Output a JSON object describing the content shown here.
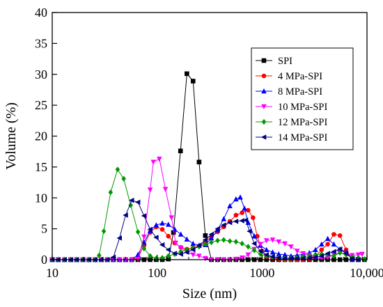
{
  "chart_data": {
    "type": "line",
    "xlabel": "Size (nm)",
    "ylabel": "Volume (%)",
    "xscale": "log",
    "xlim": [
      10,
      10000
    ],
    "ylim": [
      0,
      40
    ],
    "x_ticks": [
      {
        "value": 10,
        "label": "10"
      },
      {
        "value": 100,
        "label": "100"
      },
      {
        "value": 1000,
        "label": "1000"
      },
      {
        "value": 10000,
        "label": "10,000"
      }
    ],
    "y_ticks": [
      {
        "value": 0,
        "label": "0"
      },
      {
        "value": 5,
        "label": "5"
      },
      {
        "value": 10,
        "label": "10"
      },
      {
        "value": 15,
        "label": "15"
      },
      {
        "value": 20,
        "label": "20"
      },
      {
        "value": 25,
        "label": "25"
      },
      {
        "value": 30,
        "label": "30"
      },
      {
        "value": 35,
        "label": "35"
      },
      {
        "value": 40,
        "label": "40"
      }
    ],
    "grid": false,
    "legend_position": "top-right",
    "series": [
      {
        "name": "SPI",
        "color": "#000000",
        "marker": "square",
        "points": [
          [
            10,
            0
          ],
          [
            11.4,
            0
          ],
          [
            13.1,
            0
          ],
          [
            15,
            0
          ],
          [
            17.1,
            0
          ],
          [
            19.6,
            0
          ],
          [
            22.4,
            0
          ],
          [
            25.6,
            0
          ],
          [
            29.3,
            0
          ],
          [
            33.5,
            0
          ],
          [
            38.3,
            0
          ],
          [
            43.8,
            0
          ],
          [
            50.1,
            0
          ],
          [
            57.3,
            0
          ],
          [
            65.6,
            0
          ],
          [
            75,
            0
          ],
          [
            85.8,
            0
          ],
          [
            98,
            0
          ],
          [
            112,
            0
          ],
          [
            128,
            0.1
          ],
          [
            143,
            4.4
          ],
          [
            167,
            17.6
          ],
          [
            192,
            30.1
          ],
          [
            220,
            28.9
          ],
          [
            251,
            15.8
          ],
          [
            288,
            3.9
          ],
          [
            329,
            0
          ],
          [
            377,
            0
          ],
          [
            431,
            0
          ],
          [
            493,
            0
          ],
          [
            564,
            0
          ],
          [
            645,
            0
          ],
          [
            737,
            0
          ],
          [
            843,
            0
          ],
          [
            965,
            0
          ],
          [
            1103,
            0
          ],
          [
            1262,
            0
          ],
          [
            1443,
            0
          ],
          [
            1650,
            0
          ],
          [
            1888,
            0
          ],
          [
            2159,
            0
          ],
          [
            2469,
            0
          ],
          [
            2824,
            0
          ],
          [
            3230,
            0
          ],
          [
            3694,
            0
          ],
          [
            4225,
            0
          ],
          [
            4833,
            0
          ],
          [
            5527,
            0
          ],
          [
            6321,
            0
          ],
          [
            7230,
            0
          ],
          [
            8269,
            0
          ],
          [
            9457,
            0
          ]
        ]
      },
      {
        "name": "4 MPa-SPI",
        "color": "#ff0000",
        "marker": "circle",
        "points": [
          [
            10,
            0
          ],
          [
            11.4,
            0
          ],
          [
            13.1,
            0
          ],
          [
            15,
            0
          ],
          [
            17.1,
            0
          ],
          [
            19.6,
            0
          ],
          [
            22.4,
            0
          ],
          [
            25.6,
            0
          ],
          [
            29.3,
            0
          ],
          [
            33.5,
            0
          ],
          [
            38.3,
            0
          ],
          [
            43.8,
            0
          ],
          [
            50.1,
            0
          ],
          [
            57.3,
            0
          ],
          [
            65.6,
            0.3
          ],
          [
            75,
            2.3
          ],
          [
            85.8,
            4.4
          ],
          [
            98,
            5.3
          ],
          [
            112,
            4.9
          ],
          [
            128,
            3.8
          ],
          [
            147,
            2.7
          ],
          [
            168,
            2
          ],
          [
            192,
            1.7
          ],
          [
            220,
            1.9
          ],
          [
            251,
            2.2
          ],
          [
            288,
            2.9
          ],
          [
            329,
            3.7
          ],
          [
            377,
            4.5
          ],
          [
            431,
            5.3
          ],
          [
            493,
            6.2
          ],
          [
            564,
            7.2
          ],
          [
            645,
            7.6
          ],
          [
            737,
            8
          ],
          [
            820,
            6.8
          ],
          [
            900,
            3.8
          ],
          [
            1000,
            1.4
          ],
          [
            1103,
            0.5
          ],
          [
            1262,
            0.2
          ],
          [
            1443,
            0.1
          ],
          [
            1650,
            0
          ],
          [
            1888,
            0
          ],
          [
            2159,
            0
          ],
          [
            2469,
            0
          ],
          [
            2824,
            0.1
          ],
          [
            3230,
            0.5
          ],
          [
            3694,
            1.6
          ],
          [
            4225,
            2.5
          ],
          [
            4833,
            4.1
          ],
          [
            5527,
            3.9
          ],
          [
            6321,
            1.6
          ],
          [
            7230,
            0.1
          ],
          [
            8269,
            0
          ]
        ]
      },
      {
        "name": "8 MPa-SPI",
        "color": "#0000ff",
        "marker": "triangle-up",
        "points": [
          [
            10,
            0
          ],
          [
            11.4,
            0
          ],
          [
            13.1,
            0
          ],
          [
            15,
            0
          ],
          [
            17.1,
            0
          ],
          [
            19.6,
            0
          ],
          [
            22.4,
            0
          ],
          [
            25.6,
            0
          ],
          [
            29.3,
            0
          ],
          [
            33.5,
            0
          ],
          [
            38.3,
            0
          ],
          [
            43.8,
            0
          ],
          [
            50.1,
            0
          ],
          [
            57.3,
            0
          ],
          [
            65.6,
            0.8
          ],
          [
            75,
            2.8
          ],
          [
            85.8,
            4.7
          ],
          [
            98,
            5.6
          ],
          [
            112,
            5.9
          ],
          [
            128,
            5.7
          ],
          [
            147,
            4.9
          ],
          [
            168,
            4.1
          ],
          [
            192,
            3.3
          ],
          [
            220,
            2.6
          ],
          [
            251,
            2.3
          ],
          [
            288,
            2.4
          ],
          [
            329,
            3.5
          ],
          [
            377,
            4.8
          ],
          [
            431,
            6.6
          ],
          [
            493,
            8.7
          ],
          [
            564,
            9.8
          ],
          [
            620,
            10.1
          ],
          [
            680,
            8.3
          ],
          [
            737,
            6
          ],
          [
            843,
            3.8
          ],
          [
            965,
            2.3
          ],
          [
            1103,
            1.6
          ],
          [
            1262,
            1.2
          ],
          [
            1443,
            0.9
          ],
          [
            1650,
            0.8
          ],
          [
            1888,
            0.6
          ],
          [
            2159,
            0.7
          ],
          [
            2469,
            0.9
          ],
          [
            2824,
            1.1
          ],
          [
            3230,
            1.6
          ],
          [
            3694,
            2.5
          ],
          [
            4225,
            3.4
          ],
          [
            4833,
            2.5
          ],
          [
            5527,
            1.7
          ],
          [
            6321,
            1.2
          ],
          [
            7230,
            0.1
          ],
          [
            8269,
            0
          ]
        ]
      },
      {
        "name": "10 MPa-SPI",
        "color": "#ff00ff",
        "marker": "triangle-down",
        "points": [
          [
            10,
            0
          ],
          [
            11.4,
            0
          ],
          [
            13.1,
            0
          ],
          [
            15,
            0
          ],
          [
            17.1,
            0
          ],
          [
            19.6,
            0
          ],
          [
            22.4,
            0
          ],
          [
            25.6,
            0
          ],
          [
            29.3,
            0
          ],
          [
            33.5,
            0
          ],
          [
            38.3,
            0
          ],
          [
            43.8,
            0
          ],
          [
            50.1,
            0
          ],
          [
            57.3,
            0
          ],
          [
            65.6,
            0.1
          ],
          [
            75,
            3.7
          ],
          [
            85.8,
            11.3
          ],
          [
            92,
            15.8
          ],
          [
            105,
            16.3
          ],
          [
            120,
            11.4
          ],
          [
            137,
            6.8
          ],
          [
            150,
            2.7
          ],
          [
            168,
            1.9
          ],
          [
            192,
            1.3
          ],
          [
            220,
            0.8
          ],
          [
            251,
            0.6
          ],
          [
            288,
            0.2
          ],
          [
            329,
            0
          ],
          [
            377,
            0
          ],
          [
            431,
            0
          ],
          [
            493,
            0
          ],
          [
            564,
            0.1
          ],
          [
            645,
            0.3
          ],
          [
            737,
            0.8
          ],
          [
            843,
            1.7
          ],
          [
            965,
            2.5
          ],
          [
            1103,
            3.1
          ],
          [
            1262,
            3.2
          ],
          [
            1443,
            2.9
          ],
          [
            1650,
            2.6
          ],
          [
            1888,
            2.1
          ],
          [
            2159,
            1.4
          ],
          [
            2469,
            1
          ],
          [
            2824,
            0.7
          ],
          [
            3230,
            0.3
          ],
          [
            3694,
            0.2
          ],
          [
            4225,
            0.3
          ],
          [
            4833,
            0.8
          ],
          [
            5527,
            1.1
          ],
          [
            6321,
            0.9
          ],
          [
            7230,
            0.7
          ],
          [
            8269,
            0.8
          ],
          [
            9000,
            0.9
          ]
        ]
      },
      {
        "name": "12 MPa-SPI",
        "color": "#009900",
        "marker": "diamond",
        "points": [
          [
            10,
            0
          ],
          [
            11.4,
            0
          ],
          [
            13.1,
            0
          ],
          [
            15,
            0
          ],
          [
            17.1,
            0
          ],
          [
            19.6,
            0
          ],
          [
            22.4,
            0
          ],
          [
            25.6,
            0
          ],
          [
            28,
            0.7
          ],
          [
            31,
            4.6
          ],
          [
            36,
            10.9
          ],
          [
            42,
            14.6
          ],
          [
            48,
            13.1
          ],
          [
            56,
            8.8
          ],
          [
            65.6,
            4.5
          ],
          [
            75,
            1.8
          ],
          [
            85.8,
            0.6
          ],
          [
            98,
            0.2
          ],
          [
            112,
            0.3
          ],
          [
            128,
            0.6
          ],
          [
            147,
            0.9
          ],
          [
            168,
            1.3
          ],
          [
            192,
            1.6
          ],
          [
            220,
            1.9
          ],
          [
            251,
            2.1
          ],
          [
            288,
            2.5
          ],
          [
            329,
            2.8
          ],
          [
            377,
            3.1
          ],
          [
            431,
            3.2
          ],
          [
            493,
            3
          ],
          [
            564,
            2.9
          ],
          [
            645,
            2.6
          ],
          [
            737,
            2.1
          ],
          [
            843,
            1.5
          ],
          [
            965,
            0.9
          ],
          [
            1103,
            0.6
          ],
          [
            1262,
            0.4
          ],
          [
            1443,
            0.3
          ],
          [
            1650,
            0.2
          ],
          [
            1888,
            0.2
          ],
          [
            2159,
            0.3
          ],
          [
            2469,
            0.5
          ],
          [
            2824,
            0.6
          ],
          [
            3230,
            0.8
          ],
          [
            3694,
            0.9
          ],
          [
            4225,
            0.8
          ],
          [
            4833,
            0.6
          ],
          [
            5527,
            1.1
          ],
          [
            6321,
            0.8
          ],
          [
            7230,
            0.4
          ],
          [
            8269,
            0.3
          ],
          [
            9457,
            0.1
          ]
        ]
      },
      {
        "name": "14 MPa-SPI",
        "color": "#000080",
        "marker": "triangle-left",
        "points": [
          [
            10,
            0
          ],
          [
            11.4,
            0
          ],
          [
            13.1,
            0
          ],
          [
            15,
            0
          ],
          [
            17.1,
            0
          ],
          [
            19.6,
            0
          ],
          [
            22.4,
            0
          ],
          [
            25.6,
            0
          ],
          [
            29.3,
            0
          ],
          [
            33.5,
            0
          ],
          [
            38.3,
            0.4
          ],
          [
            43.8,
            3.5
          ],
          [
            50.1,
            7.2
          ],
          [
            57.3,
            9.6
          ],
          [
            65.6,
            9.3
          ],
          [
            75,
            7.1
          ],
          [
            85.8,
            4.9
          ],
          [
            98,
            3.6
          ],
          [
            112,
            2.4
          ],
          [
            128,
            1.6
          ],
          [
            147,
            1
          ],
          [
            168,
            0.9
          ],
          [
            192,
            1.2
          ],
          [
            220,
            1.6
          ],
          [
            251,
            2.3
          ],
          [
            288,
            3.2
          ],
          [
            329,
            4.1
          ],
          [
            377,
            5
          ],
          [
            431,
            5.6
          ],
          [
            493,
            6
          ],
          [
            564,
            6.2
          ],
          [
            645,
            6.3
          ],
          [
            700,
            6.4
          ],
          [
            760,
            4.6
          ],
          [
            843,
            2.6
          ],
          [
            965,
            1.4
          ],
          [
            1103,
            0.8
          ],
          [
            1262,
            0.5
          ],
          [
            1443,
            0.3
          ],
          [
            1650,
            0.2
          ],
          [
            1888,
            0.2
          ],
          [
            2159,
            0.2
          ],
          [
            2469,
            0.2
          ],
          [
            2824,
            0.3
          ],
          [
            3230,
            0.4
          ],
          [
            3694,
            0.6
          ],
          [
            4225,
            1
          ],
          [
            4833,
            1.3
          ],
          [
            5527,
            1.7
          ],
          [
            6321,
            1
          ],
          [
            7230,
            0.2
          ],
          [
            8269,
            0
          ]
        ]
      }
    ]
  }
}
